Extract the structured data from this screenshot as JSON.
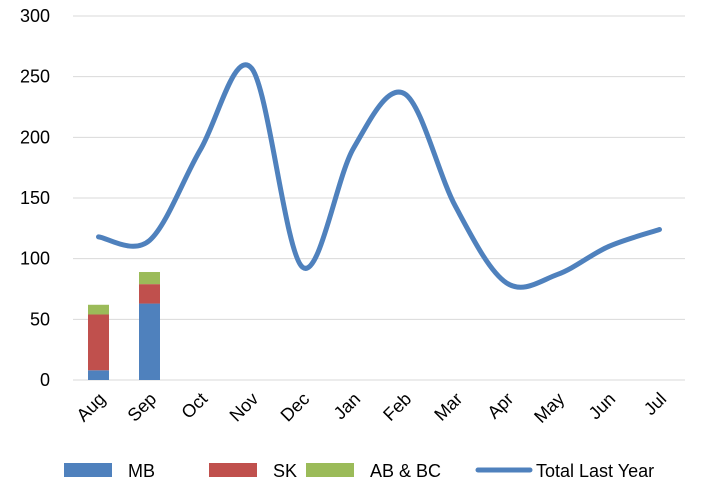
{
  "chart_data": {
    "type": "bar",
    "title": "",
    "xlabel": "",
    "ylabel": "",
    "categories": [
      "Aug",
      "Sep",
      "Oct",
      "Nov",
      "Dec",
      "Jan",
      "Feb",
      "Mar",
      "Apr",
      "May",
      "Jun",
      "Jul"
    ],
    "ylim": [
      0,
      300
    ],
    "yticks": [
      0,
      50,
      100,
      150,
      200,
      250,
      300
    ],
    "grid": true,
    "legend_position": "bottom",
    "stacked_series": [
      {
        "name": "MB",
        "color": "#4f81bd",
        "values": [
          8,
          63,
          null,
          null,
          null,
          null,
          null,
          null,
          null,
          null,
          null,
          null
        ]
      },
      {
        "name": "SK",
        "color": "#c0504d",
        "values": [
          46,
          16,
          null,
          null,
          null,
          null,
          null,
          null,
          null,
          null,
          null,
          null
        ]
      },
      {
        "name": "AB & BC",
        "color": "#9bbb59",
        "values": [
          8,
          10,
          null,
          null,
          null,
          null,
          null,
          null,
          null,
          null,
          null,
          null
        ]
      }
    ],
    "line_series": [
      {
        "name": "Total Last Year",
        "color": "#4f81bd",
        "smooth": true,
        "values": [
          118,
          115,
          190,
          257,
          93,
          191,
          236,
          143,
          80,
          87,
          110,
          124
        ]
      }
    ]
  }
}
